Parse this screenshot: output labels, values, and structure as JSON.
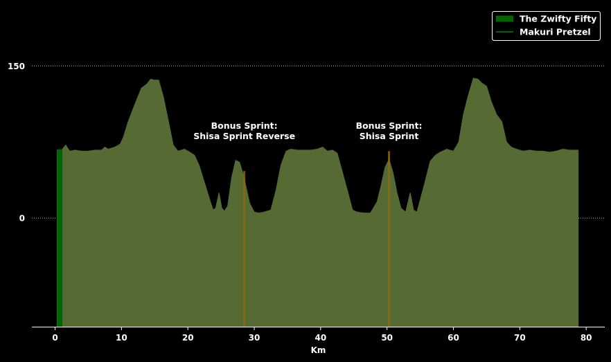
{
  "chart_data": {
    "type": "area",
    "xlabel": "Km",
    "ylabel": "",
    "xlim": [
      -3.5,
      82.8
    ],
    "ylim": [
      -107,
      215
    ],
    "xticks": [
      0,
      10,
      20,
      30,
      40,
      50,
      60,
      70,
      80
    ],
    "yticks": [
      0,
      150
    ],
    "grid": "horizontal-dotted",
    "legend_placement": "top-right",
    "colors": {
      "background": "#000000",
      "profile_fill": "#556b33",
      "start_band": "#006400",
      "sprint_band": "#8b6914",
      "gridline": "#bbbbbb",
      "axis": "#ffffff"
    },
    "legend": [
      {
        "label": "The Zwifty Fifty",
        "symbol": "patch",
        "color": "#006400"
      },
      {
        "label": "Makuri Pretzel",
        "symbol": "line",
        "color": "#006400"
      }
    ],
    "start_segment": {
      "x_start": 0.3,
      "x_end": 1.1
    },
    "sprints": [
      {
        "label_lines": [
          "Bonus Sprint:",
          "Shisa Sprint Reverse"
        ],
        "x": 28.5,
        "label_x": 28.5,
        "label_y": 82
      },
      {
        "label_lines": [
          "Bonus Sprint:",
          "Shisa Sprint"
        ],
        "x": 50.3,
        "label_x": 50.3,
        "label_y": 82
      }
    ],
    "series": [
      {
        "name": "Makuri Pretzel",
        "x": [
          0.3,
          1,
          1.6,
          2.2,
          3,
          4,
          5,
          6,
          7,
          7.5,
          8,
          9,
          9.8,
          10.3,
          11,
          12,
          13,
          13.8,
          14.4,
          15,
          15.6,
          16.3,
          17,
          17.8,
          18.5,
          19.5,
          20.3,
          21,
          21.7,
          22.5,
          23.2,
          23.8,
          24.2,
          24.7,
          25.1,
          25.5,
          26,
          26.6,
          27.2,
          27.8,
          28.3,
          28.8,
          29.3,
          30,
          30.7,
          31.5,
          32.5,
          33.3,
          34,
          34.8,
          35.5,
          36.5,
          37.5,
          38.5,
          39.5,
          40.3,
          41,
          41.8,
          42.5,
          43,
          43.5,
          44,
          44.8,
          45.5,
          46.5,
          47.5,
          48.5,
          49.1,
          49.7,
          50.3,
          50.9,
          51.5,
          52.1,
          52.8,
          53.5,
          54,
          54.5,
          55,
          55.7,
          56.5,
          57.3,
          58,
          59,
          60,
          60.8,
          61.5,
          62.2,
          63,
          63.7,
          64.3,
          65,
          65.7,
          66.5,
          67.3,
          68,
          68.7,
          69.5,
          70.5,
          71.5,
          72.5,
          73.5,
          74.5,
          75.5,
          76.5,
          77.5,
          78,
          78.8
        ],
        "values": [
          67,
          67,
          72,
          66,
          67,
          66,
          66,
          67,
          67,
          70,
          68,
          70,
          73,
          80,
          95,
          112,
          128,
          132,
          137,
          136,
          136,
          120,
          98,
          72,
          66,
          68,
          65,
          62,
          52,
          35,
          20,
          8,
          10,
          25,
          10,
          7,
          12,
          40,
          57,
          55,
          44,
          30,
          15,
          6,
          5,
          6,
          8,
          28,
          52,
          66,
          68,
          67,
          67,
          67,
          68,
          70,
          66,
          67,
          64,
          52,
          40,
          28,
          8,
          6,
          5,
          5,
          16,
          32,
          50,
          58,
          45,
          25,
          10,
          6,
          25,
          8,
          6,
          18,
          35,
          56,
          62,
          65,
          68,
          66,
          75,
          102,
          120,
          138,
          137,
          133,
          130,
          115,
          102,
          95,
          75,
          70,
          68,
          66,
          67,
          66,
          66,
          65,
          66,
          68,
          67,
          67,
          67
        ]
      }
    ]
  }
}
